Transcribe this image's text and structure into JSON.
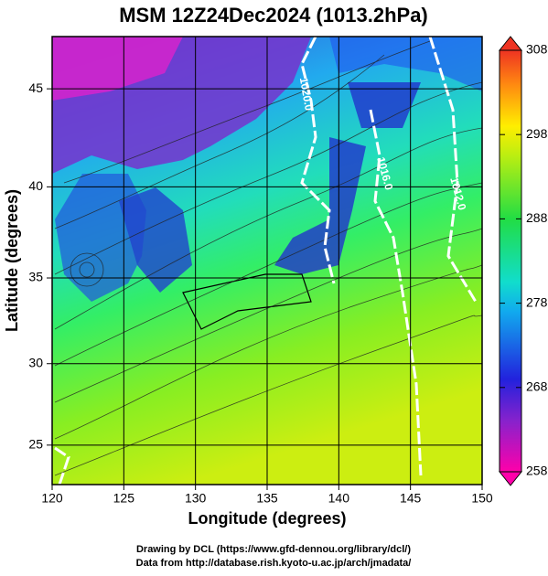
{
  "chart_data": {
    "type": "map",
    "title": "MSM 12Z24Dec2024 (1013.2hPa)",
    "xlabel": "Longitude (degrees)",
    "ylabel": "Latitude  (degrees)",
    "projection": "mercator",
    "xlim": [
      120,
      150
    ],
    "xticks": [
      120,
      125,
      130,
      135,
      140,
      145,
      150
    ],
    "ylim": [
      22.5,
      47.5
    ],
    "yticks": [
      25,
      30,
      35,
      40,
      45
    ],
    "grid": true,
    "colorbar": {
      "lim": [
        258,
        308
      ],
      "ticks": [
        258,
        268,
        278,
        288,
        298,
        308
      ]
    },
    "contour_labels": [
      "1020.0",
      "1016.0",
      "1012.0"
    ],
    "footnotes": [
      "Drawing by DCL (https://www.gfd-dennou.org/library/dcl/)",
      "Data from http://database.rish.kyoto-u.ac.jp/arch/jmadata/"
    ]
  }
}
